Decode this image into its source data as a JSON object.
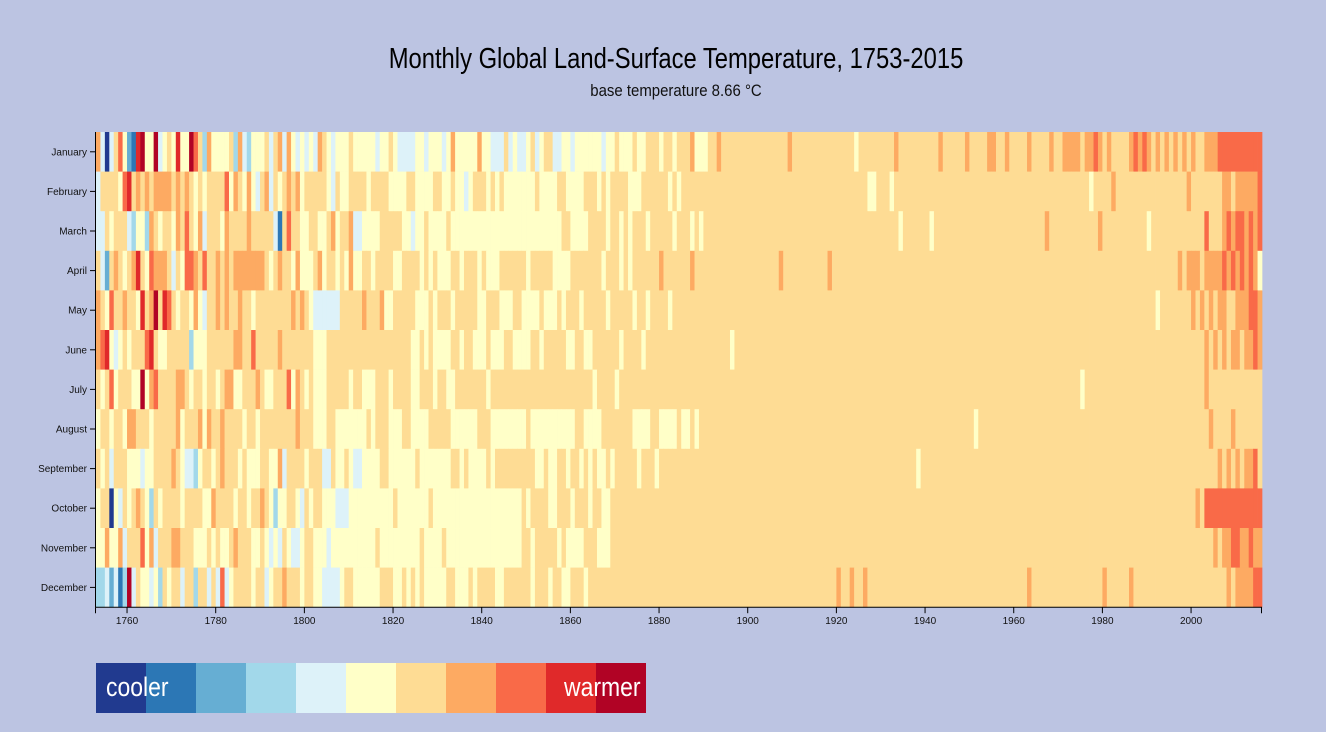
{
  "title": "Monthly Global Land-Surface Temperature, 1753-2015",
  "subtitle": "base temperature 8.66 °C",
  "legend": {
    "cooler_label": "cooler",
    "warmer_label": "warmer",
    "colors": [
      "#213a8f",
      "#2c77b5",
      "#66aed3",
      "#a2d8ea",
      "#ddf2f9",
      "#ffffc8",
      "#fedc94",
      "#fdaa62",
      "#f96a48",
      "#e0292a",
      "#b10325"
    ]
  },
  "chart_data": {
    "type": "heatmap",
    "title": "Monthly Global Land-Surface Temperature, 1753-2015",
    "subtitle": "base temperature 8.66 °C",
    "x_range": [
      1753,
      2015
    ],
    "x_ticks": [
      1760,
      1780,
      1800,
      1820,
      1840,
      1860,
      1880,
      1900,
      1920,
      1940,
      1960,
      1980,
      2000
    ],
    "months": [
      "January",
      "February",
      "March",
      "April",
      "May",
      "June",
      "July",
      "August",
      "September",
      "October",
      "November",
      "December"
    ],
    "color_scale": [
      "#213a8f",
      "#2c77b5",
      "#66aed3",
      "#a2d8ea",
      "#ddf2f9",
      "#ffffc8",
      "#fedc94",
      "#fdaa62",
      "#f96a48",
      "#e0292a",
      "#b10325"
    ],
    "color_index_encoding": "one character per year 1753-2015, digit 0-9 or 'a' (10) = index into color_scale",
    "rows": [
      "7404685219a55a4565955a8637555563743555646747545454765455565555545565444455455545755555755444645445645664455455555545565556556665665666755566766666666666666676666666666666656666666676666666667666667666677667666676666766777767787676666787876767676767667778888888888887777887",
      "4666658967676777767676565666685765754674656767566666546556666566665555665555665565545666565655555556555566555566656566665556666665656666666666666666666666666666666666666666665566656666666666666666666666666666666666666666666656666766666666666666667666666677677777888877",
      "4465666435537656657686574666576666766666416866556655675667445555666665545565555655555555555555555555555556655556666566565666566666566656566666666666666666666666666666666666666666666566666656666666666666666666666666766666666666766666666665666666666666866678788787887",
      "6426765679658777646588768667676777777765676657555675665657556656666556666565655566566656555666666566666555566666665666565666666766666676666666666666666666766666666667666666666666666666666666666666666666666666666666666666666666666666666666666666767776777787878787",
      "7658667665967a698656657546676766766566666666767654444446666676667556666655565666566666556665556655556555656665666665666665665666656666666666666666666666666666666666666666666666666666666666666666666666666666666666666666666666666666666666666566666667676767766777887778",
      "7895456566689655666663555666666776686666676666666555666666666666666666655656555566566555655566555566566666556655666666566665666666666666666666656666666666666666666666666666666666666666666666666666666666666666666666666666666666666666666666666666666666767676776778787",
      "6568566655a578666677656656656775566676556668576565556666656655566656666556665665566666665666666666666666666666665666656666666666666666666666666666666666666666666666666666666666666666666666666666666666666666666666666666666656666666666666666666666666667666666666666665",
      "566566577666566666756667576676666566566666666766655566555555565666555665555666665555556665555555565555555555665555666666655556655556556566666666666666666666666666666666666666666666666666666666666666566666666666666666666666666666666666666666666666666667666676666665",
      "65646665554556666765443566567666565556655746666566644655654455556655555565555555665655556566666666655655665665656556566666566656666666666666666666666666666666666666666666666666666666666566666666666666666666666666666666666666666666666666666666666666666667676767786787",
      "5660546567653656666566665576666566566765355665465665554445555555555655555556555555555555555555556566665566656665665566666666666666666666666666666666666666666666666666666666666666666666666666666666666666666666666666666666666666666666666666666666666676888888888888888",
      "55755746668574666776665556565567666556545465445665554555555555565555555556555565555555555555555566566666565555666555666666666666666666666666666666666666666666666666666666666666666666666666666666666666666666666666666666666666666666666666666666666666666676778877877876",
      "3342413a46554536566466366464845666656645667666566554444566555555666556565655555665556566665566666656665665566656666666666666666666666666666666666666666666666666666666676676676666666666666666666666666666666666667666666666666666676666676666666666666666666667677778887677"
    ]
  }
}
